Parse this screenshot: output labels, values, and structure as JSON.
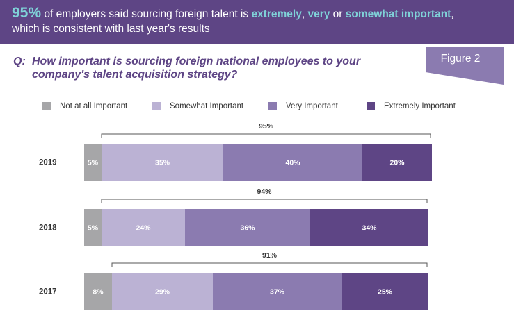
{
  "header": {
    "big_value": "95%",
    "text_part1": " of employers said sourcing foreign talent is ",
    "hl_extremely": "extremely",
    "comma": ", ",
    "hl_very": "very",
    "or": " or ",
    "hl_somewhat": "somewhat important",
    "text_part2": ",",
    "text_line2": "which is consistent with last year's results"
  },
  "figure_label": "Figure 2",
  "question": {
    "prefix": "Q:",
    "text": "How important is sourcing foreign national employees to your company's talent acquisition strategy?"
  },
  "legend": [
    {
      "label": "Not at all Important",
      "color": "#a6a6a8"
    },
    {
      "label": "Somewhat Important",
      "color": "#bbb2d4"
    },
    {
      "label": "Very Important",
      "color": "#8b7bb0"
    },
    {
      "label": "Extremely Important",
      "color": "#5e4585"
    }
  ],
  "chart_data": {
    "type": "bar",
    "orientation": "horizontal",
    "stacked": true,
    "categories": [
      "2019",
      "2018",
      "2017"
    ],
    "series": [
      {
        "name": "Not at all Important",
        "values": [
          5,
          5,
          8
        ],
        "labels": [
          "5%",
          "5%",
          "8%"
        ],
        "color": "#a6a6a8"
      },
      {
        "name": "Somewhat Important",
        "values": [
          35,
          24,
          29
        ],
        "labels": [
          "35%",
          "24%",
          "29%"
        ],
        "color": "#bbb2d4"
      },
      {
        "name": "Very Important",
        "values": [
          40,
          36,
          37
        ],
        "labels": [
          "40%",
          "36%",
          "37%"
        ],
        "color": "#8b7bb0"
      },
      {
        "name": "Extremely Important",
        "values": [
          20,
          34,
          25
        ],
        "labels": [
          "20%",
          "34%",
          "25%"
        ],
        "color": "#5e4585"
      }
    ],
    "totals": [
      {
        "value": 95,
        "label": "95%"
      },
      {
        "value": 94,
        "label": "94%"
      },
      {
        "value": 91,
        "label": "91%"
      }
    ],
    "xlim": [
      0,
      100
    ],
    "grid": false
  }
}
